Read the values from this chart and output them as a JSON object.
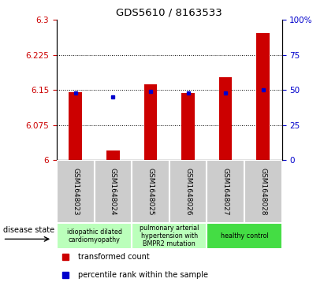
{
  "title": "GDS5610 / 8163533",
  "samples": [
    "GSM1648023",
    "GSM1648024",
    "GSM1648025",
    "GSM1648026",
    "GSM1648027",
    "GSM1648028"
  ],
  "red_values": [
    6.145,
    6.02,
    6.163,
    6.143,
    6.178,
    6.272
  ],
  "blue_values": [
    6.143,
    6.136,
    6.147,
    6.143,
    6.143,
    6.15
  ],
  "ylim_left": [
    6.0,
    6.3
  ],
  "ylim_right": [
    0,
    100
  ],
  "yticks_left": [
    6.0,
    6.075,
    6.15,
    6.225,
    6.3
  ],
  "ytick_labels_left": [
    "6",
    "6.075",
    "6.15",
    "6.225",
    "6.3"
  ],
  "yticks_right": [
    0,
    25,
    50,
    75,
    100
  ],
  "ytick_labels_right": [
    "0",
    "25",
    "50",
    "75",
    "100%"
  ],
  "grid_lines": [
    6.075,
    6.15,
    6.225
  ],
  "bar_width": 0.35,
  "red_color": "#cc0000",
  "blue_color": "#0000cc",
  "disease_groups": [
    {
      "label": "idiopathic dilated\ncardiomyopathy",
      "start": 0,
      "end": 2,
      "color": "#bbffbb"
    },
    {
      "label": "pulmonary arterial\nhypertension with\nBMPR2 mutation",
      "start": 2,
      "end": 4,
      "color": "#bbffbb"
    },
    {
      "label": "healthy control",
      "start": 4,
      "end": 6,
      "color": "#44dd44"
    }
  ],
  "legend_red": "transformed count",
  "legend_blue": "percentile rank within the sample",
  "disease_state_label": "disease state",
  "tick_color_left": "#cc0000",
  "tick_color_right": "#0000cc",
  "sample_box_color": "#cccccc",
  "sample_box_edge": "#888888"
}
